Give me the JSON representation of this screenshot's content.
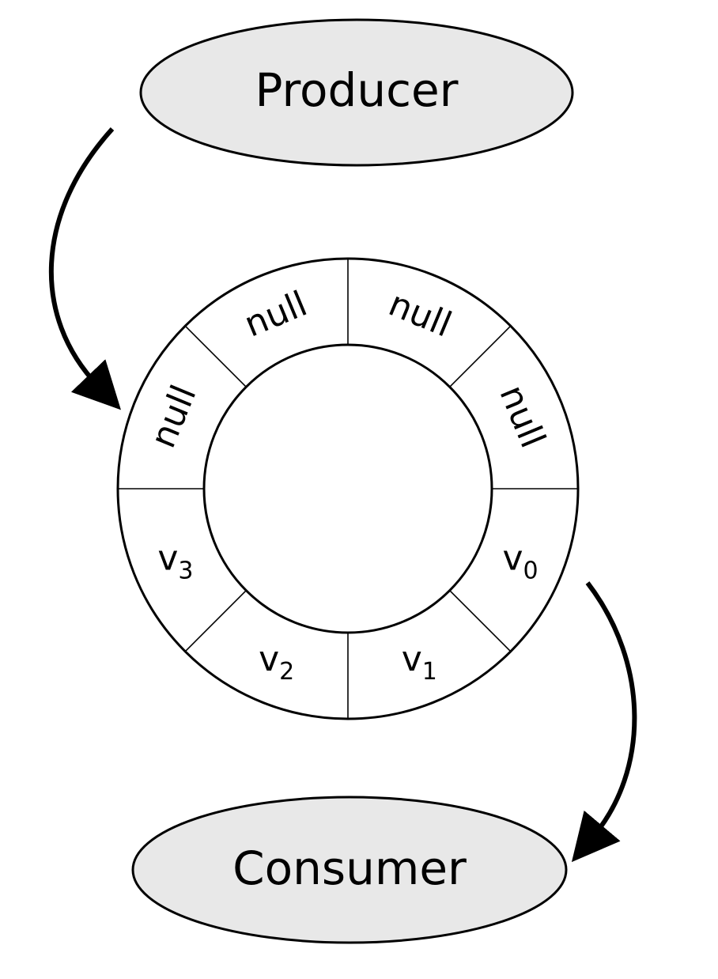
{
  "producer": {
    "label": "Producer",
    "fill": "#e8e8e8"
  },
  "consumer": {
    "label": "Consumer",
    "fill": "#e8e8e8"
  },
  "buffer": {
    "slots": [
      {
        "base": "v",
        "sub": "0"
      },
      {
        "base": "v",
        "sub": "1"
      },
      {
        "base": "v",
        "sub": "2"
      },
      {
        "base": "v",
        "sub": "3"
      },
      {
        "base": "null",
        "sub": ""
      },
      {
        "base": "null",
        "sub": ""
      },
      {
        "base": "null",
        "sub": ""
      },
      {
        "base": "null",
        "sub": ""
      }
    ]
  },
  "arrows": [
    {
      "name": "producer-to-buffer-arrow",
      "from": "producer",
      "to": "buffer"
    },
    {
      "name": "buffer-to-consumer-arrow",
      "from": "buffer",
      "to": "consumer"
    }
  ]
}
